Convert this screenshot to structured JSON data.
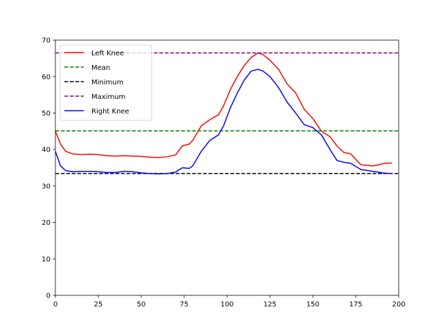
{
  "chart_data": {
    "type": "line",
    "title": "",
    "xlabel": "",
    "ylabel": "",
    "xlim": [
      0,
      200
    ],
    "ylim": [
      0,
      70
    ],
    "xticks": [
      0,
      25,
      50,
      75,
      100,
      125,
      150,
      175,
      200
    ],
    "yticks": [
      0,
      10,
      20,
      30,
      40,
      50,
      60,
      70
    ],
    "grid": false,
    "legend_position": "top-left",
    "series": [
      {
        "name": "Left Knee",
        "color": "#ff0000",
        "style": "solid",
        "x": [
          0,
          3,
          6,
          10,
          15,
          20,
          25,
          30,
          35,
          40,
          45,
          50,
          55,
          60,
          65,
          70,
          74,
          78,
          80,
          85,
          90,
          95,
          98,
          102,
          106,
          110,
          114,
          118,
          121,
          125,
          130,
          135,
          140,
          145,
          150,
          155,
          160,
          164,
          168,
          172,
          178,
          185,
          192,
          196
        ],
        "y": [
          45,
          41.5,
          39.5,
          38.8,
          38.6,
          38.7,
          38.6,
          38.3,
          38.2,
          38.3,
          38.2,
          38.1,
          37.9,
          37.8,
          38.0,
          38.5,
          41.0,
          41.5,
          42.5,
          46.5,
          48.2,
          49.5,
          52.0,
          56.5,
          60.0,
          63.0,
          65.2,
          66.5,
          66.0,
          64.5,
          62.0,
          58.0,
          55.5,
          51.0,
          48.5,
          45.0,
          43.5,
          41.0,
          39.2,
          38.8,
          35.8,
          35.5,
          36.2,
          36.3
        ]
      },
      {
        "name": "Mean",
        "color": "#008000",
        "style": "dashed",
        "x": [
          0,
          200
        ],
        "y": [
          45.1,
          45.1
        ]
      },
      {
        "name": "Minimum",
        "color": "#000000",
        "style": "dashed",
        "x": [
          0,
          200
        ],
        "y": [
          33.4,
          33.4
        ]
      },
      {
        "name": "Maximum",
        "color": "#800080",
        "style": "dashed",
        "x": [
          0,
          200
        ],
        "y": [
          66.5,
          66.5
        ]
      },
      {
        "name": "Right Knee",
        "color": "#0000ff",
        "style": "solid",
        "x": [
          0,
          3,
          6,
          10,
          15,
          20,
          25,
          30,
          35,
          40,
          45,
          50,
          55,
          60,
          65,
          70,
          74,
          78,
          80,
          85,
          90,
          95,
          98,
          102,
          106,
          110,
          114,
          118,
          121,
          125,
          130,
          135,
          140,
          145,
          150,
          155,
          160,
          164,
          168,
          172,
          178,
          185,
          192,
          196
        ],
        "y": [
          39.5,
          35.5,
          34.2,
          33.9,
          34.0,
          34.0,
          33.9,
          33.7,
          33.7,
          34.0,
          33.9,
          33.6,
          33.4,
          33.3,
          33.4,
          33.8,
          35.0,
          34.8,
          35.5,
          39.5,
          42.5,
          44.0,
          46.5,
          51.5,
          55.5,
          59.0,
          61.5,
          62.0,
          61.5,
          60.0,
          57.0,
          53.0,
          50.0,
          46.8,
          46.0,
          44.0,
          40.0,
          37.0,
          36.5,
          36.2,
          34.5,
          34.0,
          33.5,
          33.4
        ]
      }
    ]
  }
}
